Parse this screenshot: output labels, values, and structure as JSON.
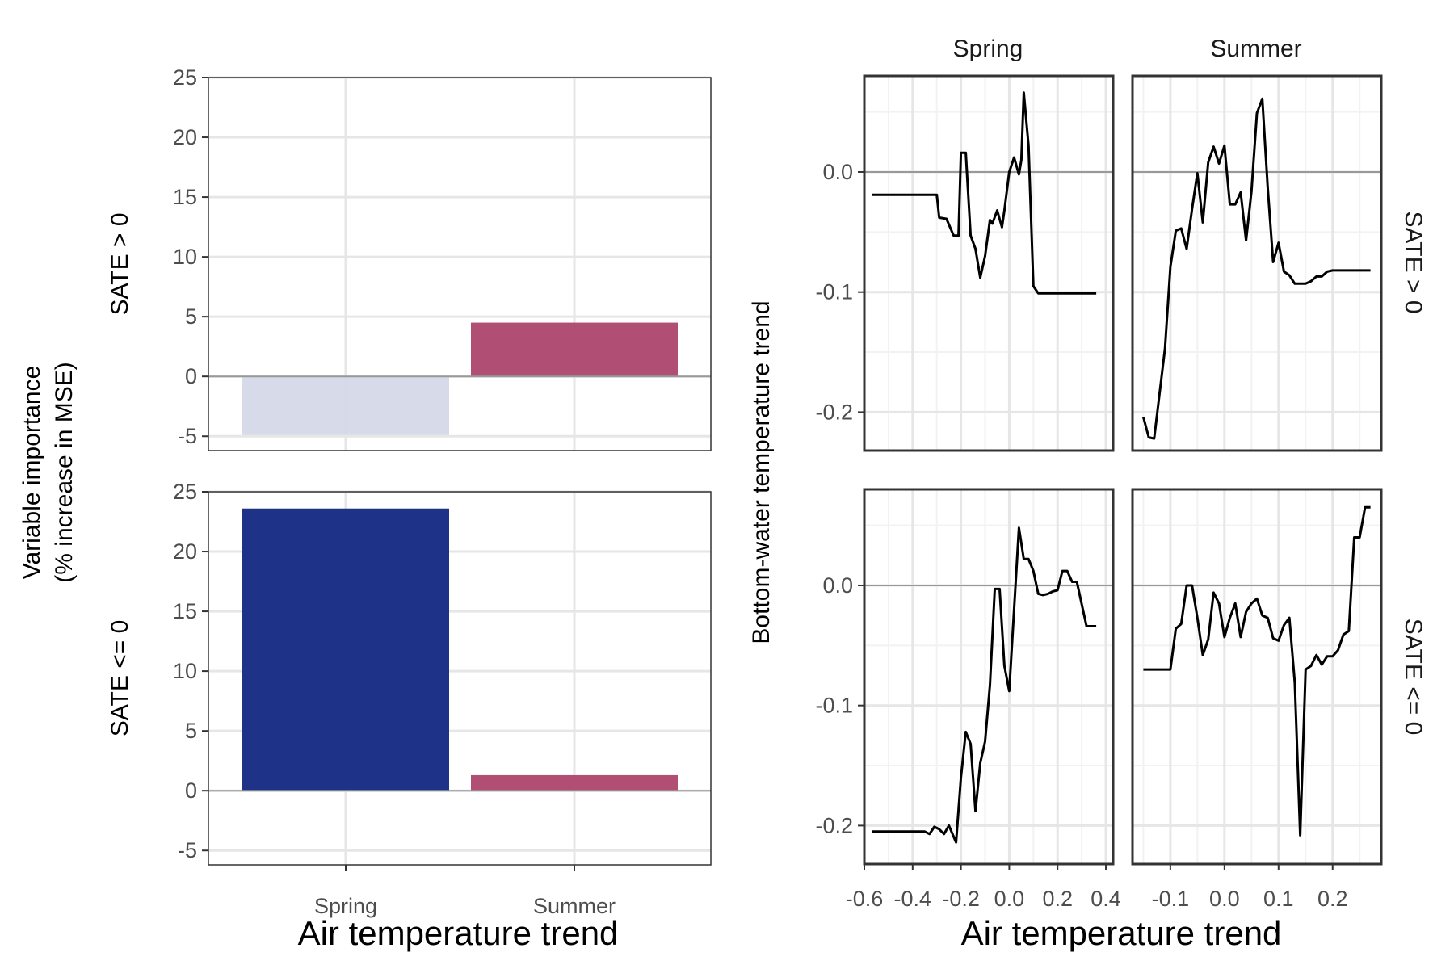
{
  "colors": {
    "positive": "#b04f73",
    "negative_light": "#d4d8e8",
    "strong": "#1e3387",
    "line": "#000000",
    "zero_line": "#999999"
  },
  "importance": {
    "x_title": "Air temperature trend",
    "y_title_line1": "Variable importance",
    "y_title_line2": "(% increase in MSE)"
  },
  "partial": {
    "x_title": "Air temperature trend",
    "y_title": "Bottom-water temperature trend",
    "col_strips": [
      "Spring",
      "Summer"
    ],
    "row_strips": [
      "SATE > 0",
      "SATE <= 0"
    ]
  },
  "chart_data": [
    {
      "type": "bar",
      "panel": "importance",
      "row_labels": [
        "SATE > 0",
        "SATE <= 0"
      ],
      "categories": [
        "Spring",
        "Summer"
      ],
      "rows": [
        {
          "values": [
            -4.9,
            4.5
          ],
          "colors": [
            "#d4d8e8",
            "#b04f73"
          ]
        },
        {
          "values": [
            23.6,
            1.3
          ],
          "colors": [
            "#1e3387",
            "#b04f73"
          ]
        }
      ],
      "ylim": [
        -6.2,
        25
      ],
      "yticks": [
        -5,
        0,
        5,
        10,
        15,
        20,
        25
      ],
      "xlabel": "Air temperature trend",
      "ylabel": "Variable importance (% increase in MSE)",
      "grid": true
    },
    {
      "type": "line",
      "panel": "partial-dependence",
      "xlabel": "Air temperature trend",
      "ylabel": "Bottom-water temperature trend",
      "ylim": [
        -0.232,
        0.08
      ],
      "yticks": [
        -0.2,
        -0.1,
        0.0
      ],
      "ytick_labels": [
        "-0.2",
        "-0.1",
        "0.0"
      ],
      "columns": [
        {
          "name": "Spring",
          "xlim": [
            -0.6,
            0.43
          ],
          "xticks": [
            -0.6,
            -0.4,
            -0.2,
            0.0,
            0.2,
            0.4
          ],
          "xtick_labels": [
            "-0.6",
            "-0.4",
            "-0.2",
            "0.0",
            "0.2",
            "0.4"
          ]
        },
        {
          "name": "Summer",
          "xlim": [
            -0.17,
            0.29
          ],
          "xticks": [
            -0.1,
            0.0,
            0.1,
            0.2
          ],
          "xtick_labels": [
            "-0.1",
            "0.0",
            "0.1",
            "0.2"
          ]
        }
      ],
      "series": [
        {
          "row": "SATE > 0",
          "col": "Spring",
          "x": [
            -0.57,
            -0.3,
            -0.29,
            -0.26,
            -0.23,
            -0.21,
            -0.2,
            -0.18,
            -0.16,
            -0.14,
            -0.12,
            -0.1,
            -0.08,
            -0.07,
            -0.05,
            -0.03,
            -0.02,
            0.0,
            0.02,
            0.04,
            0.05,
            0.06,
            0.08,
            0.1,
            0.12,
            0.14,
            0.16,
            0.2,
            0.36
          ],
          "y": [
            -0.019,
            -0.019,
            -0.038,
            -0.039,
            -0.053,
            -0.053,
            0.016,
            0.016,
            -0.053,
            -0.064,
            -0.088,
            -0.07,
            -0.04,
            -0.043,
            -0.032,
            -0.046,
            -0.032,
            0.0,
            0.012,
            -0.002,
            0.01,
            0.066,
            0.022,
            -0.095,
            -0.101,
            -0.101,
            -0.101,
            -0.101,
            -0.101
          ]
        },
        {
          "row": "SATE > 0",
          "col": "Summer",
          "x": [
            -0.15,
            -0.14,
            -0.13,
            -0.11,
            -0.1,
            -0.09,
            -0.08,
            -0.07,
            -0.06,
            -0.05,
            -0.04,
            -0.03,
            -0.02,
            -0.01,
            0.0,
            0.01,
            0.02,
            0.03,
            0.04,
            0.05,
            0.06,
            0.07,
            0.08,
            0.09,
            0.1,
            0.11,
            0.12,
            0.13,
            0.14,
            0.15,
            0.16,
            0.17,
            0.18,
            0.19,
            0.2,
            0.27
          ],
          "y": [
            -0.204,
            -0.221,
            -0.222,
            -0.147,
            -0.079,
            -0.049,
            -0.047,
            -0.064,
            -0.031,
            -0.001,
            -0.042,
            0.008,
            0.021,
            0.007,
            0.022,
            -0.027,
            -0.027,
            -0.017,
            -0.057,
            -0.016,
            0.049,
            0.061,
            -0.013,
            -0.075,
            -0.059,
            -0.083,
            -0.086,
            -0.093,
            -0.093,
            -0.093,
            -0.091,
            -0.087,
            -0.087,
            -0.083,
            -0.082,
            -0.082
          ]
        },
        {
          "row": "SATE <= 0",
          "col": "Spring",
          "x": [
            -0.57,
            -0.35,
            -0.33,
            -0.31,
            -0.29,
            -0.27,
            -0.25,
            -0.22,
            -0.2,
            -0.18,
            -0.16,
            -0.14,
            -0.12,
            -0.1,
            -0.08,
            -0.06,
            -0.04,
            -0.02,
            0.0,
            0.02,
            0.04,
            0.06,
            0.08,
            0.1,
            0.12,
            0.14,
            0.16,
            0.18,
            0.2,
            0.22,
            0.24,
            0.26,
            0.28,
            0.32,
            0.35,
            0.36
          ],
          "y": [
            -0.205,
            -0.205,
            -0.207,
            -0.201,
            -0.203,
            -0.207,
            -0.2,
            -0.214,
            -0.16,
            -0.122,
            -0.132,
            -0.188,
            -0.148,
            -0.13,
            -0.083,
            -0.003,
            -0.003,
            -0.067,
            -0.088,
            -0.02,
            0.048,
            0.022,
            0.022,
            0.012,
            -0.007,
            -0.008,
            -0.007,
            -0.005,
            -0.004,
            0.012,
            0.012,
            0.003,
            0.003,
            -0.034,
            -0.034,
            -0.034
          ]
        },
        {
          "row": "SATE <= 0",
          "col": "Summer",
          "x": [
            -0.15,
            -0.1,
            -0.09,
            -0.08,
            -0.07,
            -0.06,
            -0.05,
            -0.04,
            -0.03,
            -0.02,
            -0.01,
            0.0,
            0.01,
            0.02,
            0.03,
            0.04,
            0.05,
            0.06,
            0.07,
            0.08,
            0.09,
            0.1,
            0.11,
            0.12,
            0.13,
            0.14,
            0.15,
            0.16,
            0.17,
            0.18,
            0.19,
            0.2,
            0.21,
            0.22,
            0.23,
            0.24,
            0.25,
            0.26,
            0.27
          ],
          "y": [
            -0.07,
            -0.07,
            -0.036,
            -0.032,
            0.0,
            0.0,
            -0.027,
            -0.058,
            -0.045,
            -0.006,
            -0.015,
            -0.043,
            -0.027,
            -0.015,
            -0.043,
            -0.022,
            -0.015,
            -0.011,
            -0.025,
            -0.027,
            -0.044,
            -0.046,
            -0.033,
            -0.027,
            -0.081,
            -0.208,
            -0.07,
            -0.067,
            -0.058,
            -0.066,
            -0.059,
            -0.059,
            -0.054,
            -0.041,
            -0.038,
            0.04,
            0.04,
            0.065,
            0.065
          ]
        }
      ]
    }
  ]
}
